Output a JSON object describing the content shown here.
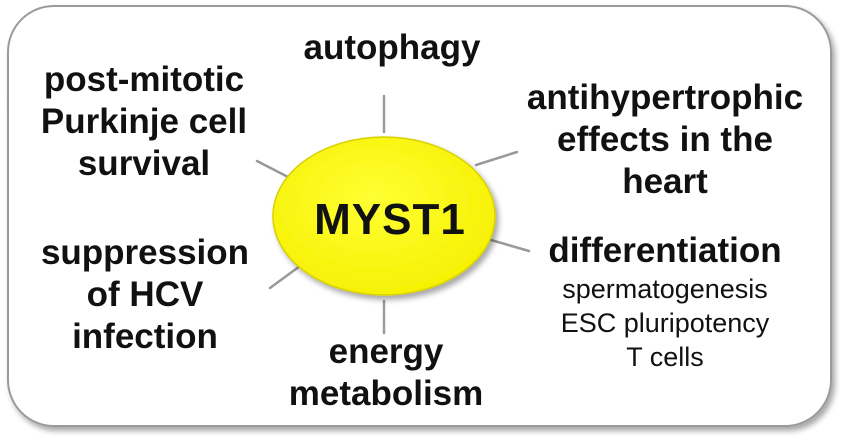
{
  "center": {
    "label": "MYST1",
    "fill": "#ffff00"
  },
  "colors": {
    "spoke": "#999999",
    "frame_stroke": "#9a9a9a",
    "frame_fill": "#ffffff",
    "frame_shadow": "#c8c8c8"
  },
  "nodes": {
    "autophagy": {
      "line1": "autophagy"
    },
    "purkinje": {
      "line1": "post-mitotic",
      "line2": "Purkinje cell",
      "line3": "survival"
    },
    "antihypertrophic": {
      "line1": "antihypertrophic",
      "line2": "effects in the",
      "line3": "heart"
    },
    "differentiation": {
      "title": "differentiation",
      "items": [
        "spermatogenesis",
        "ESC pluripotency",
        "T cells"
      ]
    },
    "hcv": {
      "line1": "suppression",
      "line2": "of HCV",
      "line3": "infection"
    },
    "energy": {
      "line1": "energy",
      "line2": "metabolism"
    }
  }
}
